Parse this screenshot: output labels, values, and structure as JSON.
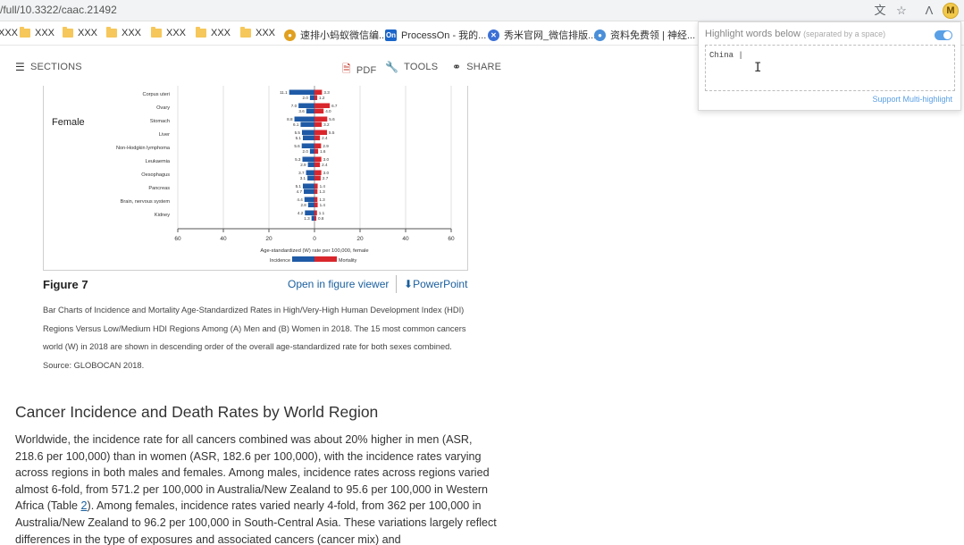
{
  "browser": {
    "url": "/full/10.3322/caac.21492",
    "extension_badge": "M"
  },
  "bookmarks": [
    {
      "label": "XXX",
      "type": "folder"
    },
    {
      "label": "XXX",
      "type": "folder"
    },
    {
      "label": "XXX",
      "type": "folder"
    },
    {
      "label": "XXX",
      "type": "folder"
    },
    {
      "label": "XXX",
      "type": "folder"
    },
    {
      "label": "XXX",
      "type": "folder"
    },
    {
      "label": "XXX",
      "type": "folder"
    },
    {
      "label": "速排小蚂蚁微信编...",
      "type": "site",
      "color": "#e0a020"
    },
    {
      "label": "ProcessOn - 我的...",
      "type": "site",
      "color": "#1a66c9"
    },
    {
      "label": "秀米官网_微信排版...",
      "type": "site",
      "color": "#3b6fd6"
    },
    {
      "label": "资料免费领 | 神经...",
      "type": "site",
      "color": "#4a8fd8"
    }
  ],
  "toolbar": {
    "sections": "SECTIONS",
    "pdf": "PDF",
    "tools": "TOOLS",
    "share": "SHARE"
  },
  "chart_data": {
    "type": "bar",
    "panel_label": "Female",
    "categories": [
      "Corpus uteri",
      "Ovary",
      "Stomach",
      "Liver",
      "Non-Hodgkin lymphoma",
      "Leukaemia",
      "Oesophagus",
      "Pancreas",
      "Brain, nervous system",
      "Kidney"
    ],
    "series": [
      {
        "name": "Incidence",
        "color": "#1f5aa6",
        "high_hdi": [
          11.1,
          7.0,
          8.8,
          5.5,
          5.6,
          5.3,
          3.7,
          5.1,
          4.4,
          4.2
        ],
        "low_hdi": [
          2.0,
          3.6,
          6.1,
          5.1,
          2.0,
          2.9,
          3.1,
          4.7,
          2.8,
          1.3
        ]
      },
      {
        "name": "Mortality",
        "color": "#d9262c",
        "high_hdi": [
          3.3,
          6.7,
          5.6,
          5.5,
          2.9,
          3.0,
          3.0,
          1.4,
          1.3,
          1.1
        ],
        "low_hdi": [
          1.2,
          4.0,
          3.2,
          2.4,
          1.6,
          2.4,
          2.7,
          1.3,
          1.4,
          0.8
        ]
      }
    ],
    "xlabel": "Age-standardized (W) rate per 100,000, female",
    "xticks": [
      "60",
      "40",
      "20",
      "0",
      "20",
      "40",
      "60"
    ],
    "xlim": [
      -60,
      60
    ],
    "legend_left": "Incidence",
    "legend_right": "Mortality",
    "grid": true
  },
  "figure": {
    "title": "Figure 7",
    "viewer_link": "Open in figure viewer",
    "ppt_link": "PowerPoint",
    "caption": "Bar Charts of Incidence and Mortality Age-Standardized Rates in High/Very-High Human Development Index (HDI) Regions Versus Low/Medium HDI Regions Among (A) Men and (B) Women in 2018. The 15 most common cancers world (W) in 2018 are shown in descending order of the overall age-standardized rate for both sexes combined. Source: GLOBOCAN 2018."
  },
  "article": {
    "heading": "Cancer Incidence and Death Rates by World Region",
    "para_before_link": "Worldwide, the incidence rate for all cancers combined was about 20% higher in men (ASR, 218.6 per 100,000) than in women (ASR, 182.6 per 100,000), with the incidence rates varying across regions in both males and females. Among males, incidence rates across regions varied almost 6-fold, from 571.2 per 100,000 in Australia/New Zealand to 95.6 per 100,000 in Western Africa (Table ",
    "link": "2",
    "para_after_link": "). Among females, incidence rates varied nearly 4-fold, from 362 per 100,000 in Australia/New Zealand to 96.2 per 100,000 in South-Central Asia. These variations largely reflect differences in the type of exposures and associated cancers (cancer mix) and"
  },
  "highlighter": {
    "title": "Highlight words below",
    "hint": "(separated by a space)",
    "value": "China |",
    "multi": "Support Multi-highlight",
    "enabled": true
  }
}
